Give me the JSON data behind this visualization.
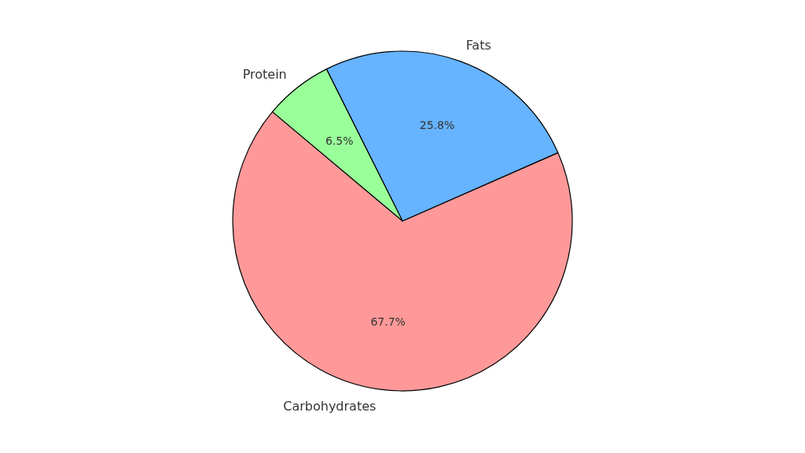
{
  "chart_data": {
    "type": "pie",
    "categories": [
      "Carbohydrates",
      "Fats",
      "Protein"
    ],
    "values": [
      67.7,
      25.8,
      6.5
    ],
    "colors": [
      "#ff9999",
      "#66b3ff",
      "#99ff99"
    ],
    "value_labels": [
      "67.7%",
      "25.8%",
      "6.5%"
    ]
  }
}
